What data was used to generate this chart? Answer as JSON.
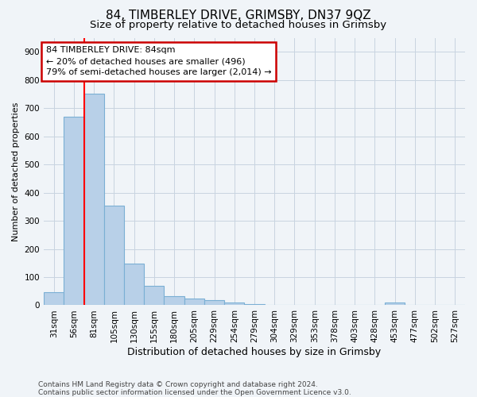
{
  "title1": "84, TIMBERLEY DRIVE, GRIMSBY, DN37 9QZ",
  "title2": "Size of property relative to detached houses in Grimsby",
  "xlabel": "Distribution of detached houses by size in Grimsby",
  "ylabel": "Number of detached properties",
  "footnote1": "Contains HM Land Registry data © Crown copyright and database right 2024.",
  "footnote2": "Contains public sector information licensed under the Open Government Licence v3.0.",
  "categories": [
    "31sqm",
    "56sqm",
    "81sqm",
    "105sqm",
    "130sqm",
    "155sqm",
    "180sqm",
    "205sqm",
    "229sqm",
    "254sqm",
    "279sqm",
    "304sqm",
    "329sqm",
    "353sqm",
    "378sqm",
    "403sqm",
    "428sqm",
    "453sqm",
    "477sqm",
    "502sqm",
    "527sqm"
  ],
  "values": [
    45,
    670,
    750,
    355,
    148,
    70,
    33,
    25,
    17,
    10,
    5,
    2,
    0,
    0,
    0,
    0,
    0,
    10,
    0,
    0,
    0
  ],
  "bar_color": "#b8d0e8",
  "bar_edge_color": "#7aafd4",
  "red_line_x": 1.5,
  "annotation_title": "84 TIMBERLEY DRIVE: 84sqm",
  "annotation_line1": "← 20% of detached houses are smaller (496)",
  "annotation_line2": "79% of semi-detached houses are larger (2,014) →",
  "annotation_box_facecolor": "#ffffff",
  "annotation_box_edgecolor": "#cc0000",
  "ylim": [
    0,
    950
  ],
  "yticks": [
    0,
    100,
    200,
    300,
    400,
    500,
    600,
    700,
    800,
    900
  ],
  "background_color": "#f0f4f8",
  "grid_color": "#c8d4e0",
  "title1_fontsize": 11,
  "title2_fontsize": 9.5,
  "xlabel_fontsize": 9,
  "ylabel_fontsize": 8,
  "tick_fontsize": 7.5,
  "annotation_fontsize": 8,
  "footnote_fontsize": 6.5
}
